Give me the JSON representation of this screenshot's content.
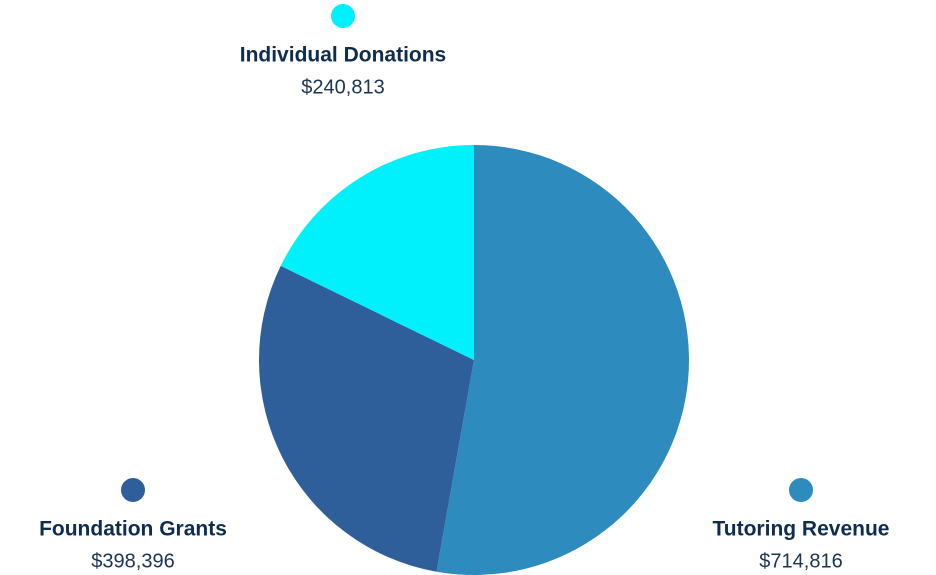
{
  "chart_data": {
    "type": "pie",
    "categories": [
      "Tutoring Revenue",
      "Foundation Grants",
      "Individual Donations"
    ],
    "values": [
      714816,
      398396,
      240813
    ],
    "value_labels": [
      "$714,816",
      "$398,396",
      "$240,813"
    ],
    "colors": [
      "#2e8bbd",
      "#2f5f9a",
      "#00f0fc"
    ]
  }
}
